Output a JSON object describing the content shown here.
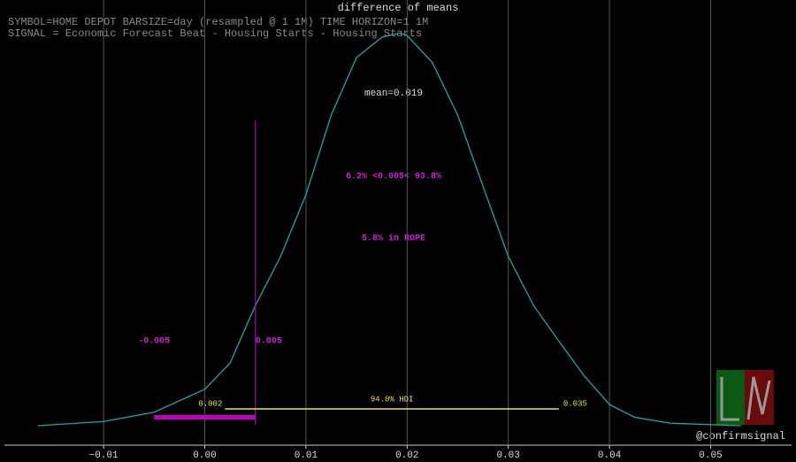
{
  "chart_data": {
    "type": "line",
    "title": "difference of means",
    "header_lines": [
      "SYMBOL=HOME DEPOT BARSIZE=day (resampled @ 1 1M) TIME HORIZON=1 1M",
      "SIGNAL = Economic Forecast Beat - Housing Starts - Housing Starts"
    ],
    "x": [
      -0.0165,
      -0.01,
      -0.005,
      0,
      0.0025,
      0.005,
      0.0075,
      0.01,
      0.0125,
      0.015,
      0.0175,
      0.0193,
      0.02,
      0.0225,
      0.025,
      0.0275,
      0.03,
      0.0325,
      0.035,
      0.0375,
      0.04,
      0.0425,
      0.046,
      0.053
    ],
    "series": [
      {
        "color": "#1aa6a6",
        "values": [
          0,
          0.5,
          1.6,
          4.3,
          7.4,
          14.2,
          20,
          27.3,
          36.7,
          43.5,
          45.9,
          46.4,
          46.1,
          42.9,
          36.7,
          28.3,
          20,
          14.2,
          10,
          5.9,
          2.5,
          1.0,
          0.3,
          0
        ]
      }
    ],
    "xlim": [
      -0.0198,
      0.058
    ],
    "ylim": [
      -2.3,
      50.3
    ],
    "xticks": [
      {
        "value": -0.01,
        "label": "−0.01"
      },
      {
        "value": 0,
        "label": "0.00"
      },
      0.01,
      0.02,
      0.03,
      0.04,
      0.05
    ],
    "grid": true,
    "mean_label": "mean=0.019",
    "ref_label": "6.2% <0.005< 93.8%",
    "ref_val": 0.005,
    "ref_color": "#c000c0",
    "rope_label": "5.8% in ROPE",
    "rope": [
      -0.005,
      0.005
    ],
    "hdi_label": "94.0% HDI",
    "hdi": [
      0.002,
      0.035
    ],
    "hdi_color": "#e8e830",
    "watermark": "@confirmsignal"
  }
}
